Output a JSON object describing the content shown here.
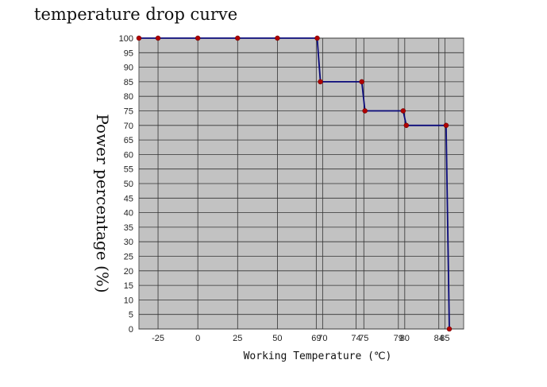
{
  "colors": {
    "plot_background": "#c2c2c2",
    "grid": "#333333",
    "line": "#0a0a7a",
    "marker": "#b00000"
  },
  "chart_data": {
    "type": "line",
    "title": "temperature drop curve",
    "xlabel": "Working Temperature (℃)",
    "ylabel": "Power percentage (%)",
    "ylim": [
      0,
      100
    ],
    "yticks": [
      0,
      5,
      10,
      15,
      20,
      25,
      30,
      35,
      40,
      45,
      50,
      55,
      60,
      65,
      70,
      75,
      80,
      85,
      90,
      95,
      100
    ],
    "xticks": [
      {
        "label": "-25",
        "value": -25
      },
      {
        "label": "0",
        "value": 0
      },
      {
        "label": "25",
        "value": 25
      },
      {
        "label": "50",
        "value": 50
      },
      {
        "label": "69",
        "value": 74.4
      },
      {
        "label": "70",
        "value": 78.4
      },
      {
        "label": "74",
        "value": 99.4
      },
      {
        "label": "75",
        "value": 104.3
      },
      {
        "label": "79",
        "value": 126.0
      },
      {
        "label": "80",
        "value": 130.0
      },
      {
        "label": "84",
        "value": 151.4
      },
      {
        "label": "85",
        "value": 155.2
      }
    ],
    "grid": true,
    "series": [
      {
        "points": [
          {
            "x": -37,
            "y": 100
          },
          {
            "x": -25,
            "y": 100
          },
          {
            "x": 0,
            "y": 100
          },
          {
            "x": 25,
            "y": 100
          },
          {
            "x": 50,
            "y": 100
          },
          {
            "x": 75,
            "y": 100
          },
          {
            "x": 77,
            "y": 85
          },
          {
            "x": 103,
            "y": 85
          },
          {
            "x": 105,
            "y": 75
          },
          {
            "x": 129,
            "y": 75
          },
          {
            "x": 131,
            "y": 70
          },
          {
            "x": 156,
            "y": 70
          },
          {
            "x": 158,
            "y": 0
          }
        ]
      }
    ]
  }
}
